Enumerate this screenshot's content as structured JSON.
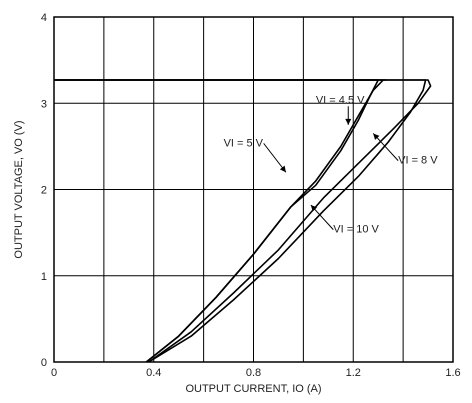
{
  "chart_data": {
    "type": "line",
    "title": "",
    "xlabel": "OUTPUT CURRENT, IO (A)",
    "ylabel": "OUTPUT VOLTAGE, VO (V)",
    "xlim": [
      0,
      1.6
    ],
    "ylim": [
      0,
      4
    ],
    "xticks": [
      "0",
      "0.4",
      "0.8",
      "1.2",
      "1.6"
    ],
    "yticks": [
      "0",
      "1",
      "2",
      "3",
      "4"
    ],
    "grid": true,
    "series": [
      {
        "name": "VI = 4.5 V",
        "x": [
          0.37,
          0.5,
          0.65,
          0.8,
          0.95,
          1.05,
          1.15,
          1.22,
          1.28,
          1.32,
          1.33,
          1.3,
          0.0
        ],
        "y": [
          0.0,
          0.3,
          0.75,
          1.25,
          1.8,
          2.1,
          2.5,
          2.85,
          3.15,
          3.27,
          3.27,
          3.27,
          3.27
        ]
      },
      {
        "name": "VI = 5 V",
        "x": [
          0.37,
          0.5,
          0.65,
          0.8,
          0.95,
          1.05,
          1.15,
          1.22,
          1.27,
          1.3,
          1.28,
          0.0
        ],
        "y": [
          0.0,
          0.3,
          0.75,
          1.25,
          1.8,
          2.05,
          2.45,
          2.8,
          3.1,
          3.27,
          3.27,
          3.27
        ]
      },
      {
        "name": "VI = 8 V",
        "x": [
          0.38,
          0.55,
          0.72,
          0.9,
          1.08,
          1.22,
          1.36,
          1.46,
          1.51,
          1.5,
          1.45,
          0.0
        ],
        "y": [
          0.0,
          0.35,
          0.8,
          1.3,
          1.9,
          2.3,
          2.7,
          3.0,
          3.2,
          3.27,
          3.27,
          3.27
        ]
      },
      {
        "name": "VI = 10 V",
        "x": [
          0.38,
          0.55,
          0.72,
          0.9,
          1.08,
          1.22,
          1.34,
          1.43,
          1.48,
          1.49,
          1.46,
          0.0
        ],
        "y": [
          0.0,
          0.3,
          0.72,
          1.2,
          1.75,
          2.15,
          2.55,
          2.9,
          3.15,
          3.27,
          3.27,
          3.27
        ]
      }
    ],
    "annotations": [
      {
        "text": "VI = 4.5 V",
        "x": 1.05,
        "y": 3.0,
        "arrow_to": [
          1.18,
          2.75
        ]
      },
      {
        "text": "VI = 5 V",
        "x": 0.68,
        "y": 2.5,
        "arrow_to": [
          0.93,
          2.2
        ]
      },
      {
        "text": "VI = 8 V",
        "x": 1.38,
        "y": 2.3,
        "arrow_to": [
          1.28,
          2.65
        ]
      },
      {
        "text": "VI = 10 V",
        "x": 1.12,
        "y": 1.5,
        "arrow_to": [
          1.03,
          1.82
        ]
      }
    ]
  }
}
